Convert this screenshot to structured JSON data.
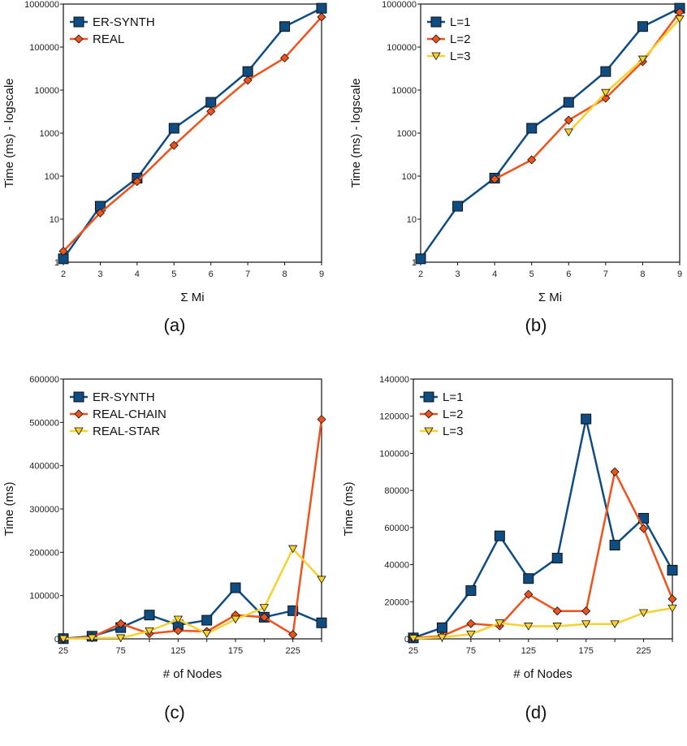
{
  "colors": {
    "blue": "#0f4c81",
    "orange": "#f0521c",
    "yellow": "#f8d12c"
  },
  "chart_data": [
    {
      "id": "a",
      "caption": "(a)",
      "type": "line",
      "yscale": "log",
      "xlabel": "Σ Mi",
      "ylabel": "Time (ms) - logscale",
      "x": [
        2,
        3,
        4,
        5,
        6,
        7,
        8,
        9
      ],
      "xlim": [
        2,
        9
      ],
      "ylim": [
        1,
        1000000
      ],
      "xticks": [
        "2",
        "3",
        "4",
        "5",
        "6",
        "7",
        "8",
        "9"
      ],
      "yticks": [
        "1",
        "10",
        "100",
        "1000",
        "10000",
        "100000",
        "1000000"
      ],
      "legend": "top-left",
      "grid": false,
      "series": [
        {
          "name": "ER-SYNTH",
          "marker": "square",
          "color": "#0f4c81",
          "values": [
            1.2,
            20,
            90,
            1300,
            5200,
            27000,
            300000,
            800000
          ]
        },
        {
          "name": "REAL",
          "marker": "diamond",
          "color": "#f0521c",
          "values": [
            1.8,
            14,
            75,
            520,
            3200,
            17000,
            56000,
            500000
          ]
        }
      ]
    },
    {
      "id": "b",
      "caption": "(b)",
      "type": "line",
      "yscale": "log",
      "xlabel": "Σ Mi",
      "ylabel": "Time (ms) - logscale",
      "x": [
        2,
        3,
        4,
        5,
        6,
        7,
        8,
        9
      ],
      "xlim": [
        2,
        9
      ],
      "ylim": [
        1,
        1000000
      ],
      "xticks": [
        "2",
        "3",
        "4",
        "5",
        "6",
        "7",
        "8",
        "9"
      ],
      "yticks": [
        "1",
        "10",
        "100",
        "1000",
        "10000",
        "100000",
        "1000000"
      ],
      "legend": "top-left",
      "grid": false,
      "series": [
        {
          "name": "L=1",
          "marker": "square",
          "color": "#0f4c81",
          "values": [
            1.2,
            20,
            90,
            1300,
            5200,
            27000,
            300000,
            800000
          ]
        },
        {
          "name": "L=2",
          "marker": "diamond",
          "color": "#f0521c",
          "values": [
            null,
            null,
            85,
            240,
            2000,
            6500,
            46000,
            650000
          ]
        },
        {
          "name": "L=3",
          "marker": "triangle-down",
          "color": "#f8d12c",
          "values": [
            null,
            null,
            null,
            null,
            1050,
            8700,
            52000,
            450000
          ]
        }
      ]
    },
    {
      "id": "c",
      "caption": "(c)",
      "type": "line",
      "yscale": "linear",
      "xlabel": "# of Nodes",
      "ylabel": "Time (ms)",
      "x": [
        25,
        50,
        75,
        100,
        125,
        150,
        175,
        200,
        225,
        250
      ],
      "xlim": [
        25,
        250
      ],
      "ylim": [
        0,
        600000
      ],
      "xticks": [
        "25",
        "75",
        "125",
        "175",
        "225"
      ],
      "yticks": [
        "0",
        "100000",
        "200000",
        "300000",
        "400000",
        "500000",
        "600000"
      ],
      "legend": "top-left",
      "grid": false,
      "series": [
        {
          "name": "ER-SYNTH",
          "marker": "square",
          "color": "#0f4c81",
          "values": [
            500,
            6000,
            26000,
            55000,
            32000,
            43000,
            118000,
            50000,
            65000,
            37000
          ]
        },
        {
          "name": "REAL-CHAIN",
          "marker": "diamond",
          "color": "#f0521c",
          "values": [
            0,
            4000,
            35000,
            12000,
            19000,
            17000,
            55000,
            50000,
            10000,
            507000
          ]
        },
        {
          "name": "REAL-STAR",
          "marker": "triangle-down",
          "color": "#f8d12c",
          "values": [
            0,
            2000,
            2000,
            18000,
            45000,
            12000,
            45000,
            72000,
            208000,
            137000
          ]
        }
      ]
    },
    {
      "id": "d",
      "caption": "(d)",
      "type": "line",
      "yscale": "linear",
      "xlabel": "# of Nodes",
      "ylabel": "Time (ms)",
      "x": [
        25,
        50,
        75,
        100,
        125,
        150,
        175,
        200,
        225,
        250
      ],
      "xlim": [
        25,
        250
      ],
      "ylim": [
        0,
        140000
      ],
      "xticks": [
        "25",
        "75",
        "125",
        "175",
        "225"
      ],
      "yticks": [
        "0",
        "20000",
        "40000",
        "60000",
        "80000",
        "100000",
        "120000",
        "140000"
      ],
      "legend": "top-left",
      "grid": false,
      "series": [
        {
          "name": "L=1",
          "marker": "square",
          "color": "#0f4c81",
          "values": [
            500,
            6000,
            26000,
            55500,
            32500,
            43500,
            118500,
            50500,
            65000,
            37000
          ]
        },
        {
          "name": "L=2",
          "marker": "diamond",
          "color": "#f0521c",
          "values": [
            500,
            1500,
            8200,
            7000,
            24000,
            15000,
            15000,
            90000,
            59500,
            21500
          ]
        },
        {
          "name": "L=3",
          "marker": "triangle-down",
          "color": "#f8d12c",
          "values": [
            300,
            800,
            2500,
            8500,
            6800,
            6800,
            8000,
            8000,
            14000,
            16500
          ]
        }
      ]
    }
  ]
}
